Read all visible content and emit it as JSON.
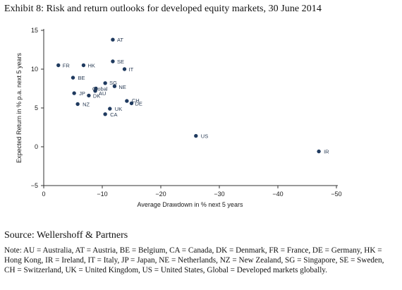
{
  "title": "Exhibit 8: Risk and return outlooks for developed equity markets, 30 June 2014",
  "source": "Source: Wellershoff & Partners",
  "note": "Note: AU = Australia, AT = Austria, BE = Belgium, CA = Canada, DK = Denmark, FR = France, DE = Germany, HK = Hong Kong, IR = Ireland, IT = Italy, JP = Japan, NE = Netherlands, NZ = New Zealand, SG = Singapore, SE = Sweden, CH = Switzerland, UK = United Kingdom, US = United States, Global = Developed markets globally.",
  "colors": {
    "point": "#1f3a5f",
    "axis": "#333333"
  },
  "chart_data": {
    "type": "scatter",
    "xlabel": "Average Drawdown in % next 5 years",
    "ylabel": "Expected Return in % p.a. next 5 years",
    "xlim": [
      0,
      -50
    ],
    "ylim": [
      -5,
      15
    ],
    "xticks": [
      0,
      -10,
      -20,
      -30,
      -40,
      -50
    ],
    "yticks": [
      -5,
      0,
      5,
      10,
      15
    ],
    "xtick_labels": [
      "0",
      "−10",
      "−20",
      "−30",
      "−40",
      "−50"
    ],
    "ytick_labels": [
      "−5",
      "0",
      "5",
      "10",
      "15"
    ],
    "grid": false,
    "points": [
      {
        "label": "AT",
        "x": -11.8,
        "y": 13.8
      },
      {
        "label": "SE",
        "x": -11.8,
        "y": 11.0
      },
      {
        "label": "FR",
        "x": -2.5,
        "y": 10.5
      },
      {
        "label": "HK",
        "x": -6.8,
        "y": 10.5
      },
      {
        "label": "IT",
        "x": -13.8,
        "y": 10.0
      },
      {
        "label": "BE",
        "x": -5.0,
        "y": 8.9
      },
      {
        "label": "SG",
        "x": -10.5,
        "y": 8.2
      },
      {
        "label": "NE",
        "x": -12.1,
        "y": 7.8
      },
      {
        "label": "Global",
        "x": -8.9,
        "y": 7.5
      },
      {
        "label": "AU",
        "x": -8.8,
        "y": 7.2
      },
      {
        "label": "JP",
        "x": -5.2,
        "y": 6.9
      },
      {
        "label": "DK",
        "x": -7.7,
        "y": 6.6
      },
      {
        "label": "CH",
        "x": -14.2,
        "y": 5.9
      },
      {
        "label": "DE",
        "x": -15.0,
        "y": 5.6
      },
      {
        "label": "NZ",
        "x": -5.8,
        "y": 5.5
      },
      {
        "label": "UK",
        "x": -11.3,
        "y": 4.9
      },
      {
        "label": "CA",
        "x": -10.5,
        "y": 4.2
      },
      {
        "label": "US",
        "x": -26.0,
        "y": 1.4
      },
      {
        "label": "IR",
        "x": -47.0,
        "y": -0.6
      }
    ]
  }
}
